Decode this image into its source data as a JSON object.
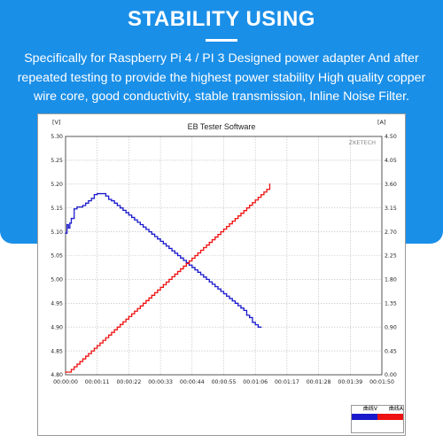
{
  "banner": {
    "headline": "STABILITY USING",
    "description": "Specifically for Raspberry Pi 4 / PI 3 Designed power adapter And after repeated testing to provide the highest power stability High quality copper wire core, good conductivity, stable transmission, Inline Noise Filter."
  },
  "tester_window": {
    "title": "EB Tester Software",
    "watermark": "ZKETECH",
    "left_unit": "[V]",
    "right_unit": "[A]"
  },
  "legend": {
    "items": [
      {
        "label": "曲线V",
        "color": "#1a1acc"
      },
      {
        "label": "曲线A",
        "color": "#ee1111"
      }
    ]
  },
  "colors": {
    "banner_blue": "#1a8fe8",
    "voltage_line": "#1a1acc",
    "current_line": "#ee1111",
    "grid": "#bbbbbb"
  },
  "chart_data": {
    "type": "line",
    "title": "EB Tester Software",
    "x_tick_labels": [
      "00:00:00",
      "00:00:11",
      "00:00:22",
      "00:00:33",
      "00:00:44",
      "00:00:55",
      "00:01:06",
      "00:01:17",
      "00:01:28",
      "00:01:39",
      "00:01:50"
    ],
    "xlim": [
      0,
      110
    ],
    "y_left": {
      "unit": "[V]",
      "ylim": [
        4.8,
        5.3
      ],
      "tick_labels": [
        "5.30",
        "5.25",
        "5.20",
        "5.15",
        "5.10",
        "5.05",
        "5.00",
        "4.95",
        "4.90",
        "4.85",
        "4.80"
      ]
    },
    "y_right": {
      "unit": "[A]",
      "ylim": [
        0,
        4.5
      ],
      "tick_labels": [
        "4.50",
        "4.05",
        "3.60",
        "3.15",
        "2.70",
        "2.25",
        "1.80",
        "1.35",
        "0.90",
        "0.45",
        "0.00"
      ]
    },
    "grid": true,
    "series": [
      {
        "name": "曲线V",
        "axis": "left",
        "x": [
          0,
          0.5,
          1,
          1.5,
          2,
          3,
          4,
          5,
          6,
          7,
          8,
          9,
          10,
          11,
          12,
          14,
          15,
          16,
          17,
          18,
          19,
          20,
          21,
          22,
          23,
          24,
          25,
          26,
          27,
          28,
          29,
          30,
          31,
          32,
          33,
          34,
          35,
          36,
          37,
          38,
          39,
          40,
          41,
          42,
          43,
          44,
          45,
          46,
          47,
          48,
          49,
          50,
          51,
          52,
          53,
          54,
          55,
          56,
          57,
          58,
          59,
          60,
          61,
          62,
          63,
          64,
          65,
          66,
          67,
          68
        ],
        "values": [
          5.097,
          5.115,
          5.108,
          5.118,
          5.128,
          5.148,
          5.152,
          5.152,
          5.155,
          5.16,
          5.165,
          5.17,
          5.178,
          5.18,
          5.18,
          5.175,
          5.168,
          5.165,
          5.16,
          5.155,
          5.15,
          5.145,
          5.14,
          5.135,
          5.13,
          5.125,
          5.12,
          5.115,
          5.11,
          5.105,
          5.1,
          5.095,
          5.09,
          5.085,
          5.08,
          5.075,
          5.07,
          5.065,
          5.06,
          5.055,
          5.05,
          5.045,
          5.04,
          5.035,
          5.03,
          5.025,
          5.02,
          5.015,
          5.01,
          5.005,
          5.0,
          4.995,
          4.99,
          4.985,
          4.98,
          4.975,
          4.97,
          4.965,
          4.96,
          4.955,
          4.95,
          4.945,
          4.94,
          4.935,
          4.925,
          4.92,
          4.91,
          4.905,
          4.9,
          4.9
        ]
      },
      {
        "name": "曲线A",
        "axis": "right",
        "x": [
          0,
          2,
          3,
          4,
          5,
          6,
          7,
          8,
          9,
          10,
          11,
          12,
          13,
          14,
          15,
          16,
          17,
          18,
          19,
          20,
          21,
          22,
          23,
          24,
          25,
          26,
          27,
          28,
          29,
          30,
          31,
          32,
          33,
          34,
          35,
          36,
          37,
          38,
          39,
          40,
          41,
          42,
          43,
          44,
          45,
          46,
          47,
          48,
          49,
          50,
          51,
          52,
          53,
          54,
          55,
          56,
          57,
          58,
          59,
          60,
          61,
          62,
          63,
          64,
          65,
          66,
          67,
          68,
          69,
          70,
          71
        ],
        "values": [
          0.05,
          0.1,
          0.15,
          0.2,
          0.25,
          0.3,
          0.35,
          0.4,
          0.45,
          0.5,
          0.55,
          0.6,
          0.65,
          0.7,
          0.75,
          0.8,
          0.85,
          0.9,
          0.95,
          1.0,
          1.05,
          1.1,
          1.15,
          1.2,
          1.25,
          1.3,
          1.35,
          1.4,
          1.45,
          1.5,
          1.55,
          1.6,
          1.65,
          1.7,
          1.75,
          1.8,
          1.85,
          1.9,
          1.95,
          2.0,
          2.05,
          2.1,
          2.15,
          2.2,
          2.25,
          2.3,
          2.35,
          2.4,
          2.45,
          2.5,
          2.55,
          2.6,
          2.65,
          2.7,
          2.75,
          2.8,
          2.85,
          2.9,
          2.95,
          3.0,
          3.05,
          3.1,
          3.15,
          3.2,
          3.25,
          3.3,
          3.35,
          3.4,
          3.45,
          3.5,
          3.6
        ]
      }
    ]
  }
}
